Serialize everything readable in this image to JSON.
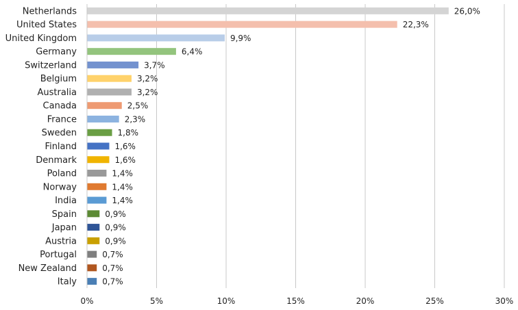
{
  "chart_data": {
    "type": "bar",
    "orientation": "horizontal",
    "categories": [
      "Netherlands",
      "United States",
      "United Kingdom",
      "Germany",
      "Switzerland",
      "Belgium",
      "Australia",
      "Canada",
      "France",
      "Sweden",
      "Finland",
      "Denmark",
      "Poland",
      "Norway",
      "India",
      "Spain",
      "Japan",
      "Austria",
      "Portugal",
      "New Zealand",
      "Italy"
    ],
    "values": [
      26.0,
      22.3,
      9.9,
      6.4,
      3.7,
      3.2,
      3.2,
      2.5,
      2.3,
      1.8,
      1.6,
      1.6,
      1.4,
      1.4,
      1.4,
      0.9,
      0.9,
      0.9,
      0.7,
      0.7,
      0.7
    ],
    "value_labels": [
      "26,0%",
      "22,3%",
      "9,9%",
      "6,4%",
      "3,7%",
      "3,2%",
      "3,2%",
      "2,5%",
      "2,3%",
      "1,8%",
      "1,6%",
      "1,6%",
      "1,4%",
      "1,4%",
      "1,4%",
      "0,9%",
      "0,9%",
      "0,9%",
      "0,7%",
      "0,7%",
      "0,7%"
    ],
    "colors": [
      "#d4d4d4",
      "#f4bfad",
      "#b8cde8",
      "#93c47d",
      "#7392cf",
      "#ffd26b",
      "#b0b0b0",
      "#ee9a72",
      "#8cb3e0",
      "#6a9e44",
      "#4472c4",
      "#f0b400",
      "#999999",
      "#e07a30",
      "#5a9bd4",
      "#5c8a34",
      "#2f5597",
      "#c9a000",
      "#7f7f7f",
      "#b0561f",
      "#4a7fb5"
    ],
    "x_ticks": [
      "0%",
      "5%",
      "10%",
      "15%",
      "20%",
      "25%",
      "30%"
    ],
    "xlim": [
      0,
      30
    ],
    "title": "",
    "xlabel": "",
    "ylabel": "",
    "grid": "vertical",
    "legend": "none"
  }
}
